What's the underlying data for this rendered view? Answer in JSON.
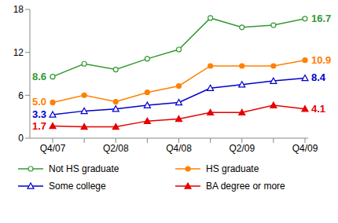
{
  "chart_data": {
    "type": "line",
    "categories": [
      "Q4/07",
      null,
      "Q2/08",
      null,
      "Q4/08",
      null,
      "Q2/09",
      null,
      "Q4/09"
    ],
    "ylim": [
      0,
      18
    ],
    "yticks": [
      0,
      6,
      12,
      18
    ],
    "grid": false,
    "legend": "bottom",
    "series": [
      {
        "name": "Not HS graduate",
        "color": "#339933",
        "marker": "circle_open",
        "line_style": "solid",
        "values": [
          8.6,
          10.4,
          9.6,
          11.1,
          12.4,
          16.8,
          15.5,
          15.8,
          16.7
        ],
        "value_labels": [
          "8.6",
          null,
          null,
          null,
          null,
          null,
          null,
          null,
          "16.7"
        ]
      },
      {
        "name": "HS graduate",
        "color": "#ff8000",
        "marker": "circle",
        "line_style": "solid",
        "values": [
          5.0,
          6.0,
          5.1,
          6.4,
          7.3,
          10.1,
          10.1,
          10.1,
          10.9
        ],
        "value_labels": [
          "5.0",
          null,
          null,
          null,
          null,
          null,
          null,
          null,
          "10.9"
        ]
      },
      {
        "name": "Some college",
        "color": "#0000cc",
        "marker": "triangle_open",
        "line_style": "solid",
        "values": [
          3.3,
          3.8,
          4.1,
          4.6,
          5.0,
          7.0,
          7.5,
          8.0,
          8.4
        ],
        "value_labels": [
          "3.3",
          null,
          null,
          null,
          null,
          null,
          null,
          null,
          "8.4"
        ]
      },
      {
        "name": "BA degree or more",
        "color": "#e60000",
        "marker": "triangle",
        "line_style": "solid",
        "values": [
          1.7,
          1.6,
          1.6,
          2.4,
          2.7,
          3.6,
          3.6,
          4.6,
          4.1
        ],
        "value_labels": [
          "1.7",
          null,
          null,
          null,
          null,
          null,
          null,
          null,
          "4.1"
        ]
      }
    ]
  }
}
